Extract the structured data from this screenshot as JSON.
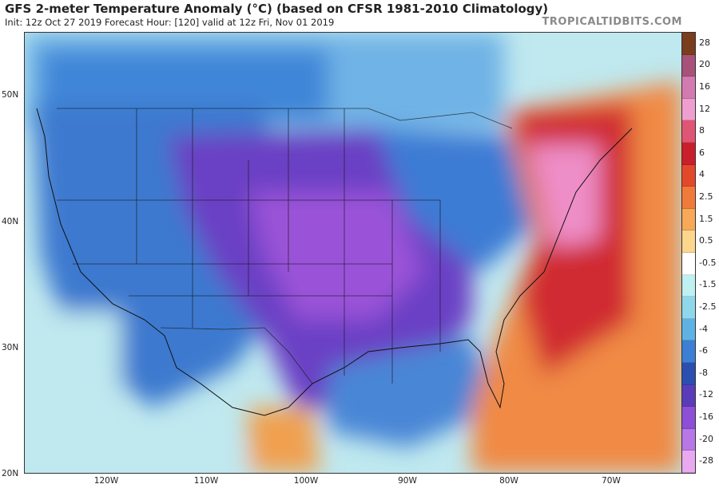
{
  "header": {
    "title": "GFS 2-meter Temperature Anomaly (°C) (based on CFSR 1981-2010 Climatology)",
    "subtitle": "Init: 12z Oct 27 2019   Forecast Hour: [120]   valid at 12z Fri, Nov 01 2019",
    "brand": "TROPICALTIDBITS.COM"
  },
  "map": {
    "lat_labels": [
      "50N",
      "40N",
      "30N",
      "20N"
    ],
    "lon_labels": [
      "120W",
      "110W",
      "100W",
      "90W",
      "80W",
      "70W"
    ]
  },
  "colorbar": {
    "labels": [
      "28",
      "20",
      "16",
      "12",
      "8",
      "6",
      "4",
      "2.5",
      "1.5",
      "0.5",
      "-0.5",
      "-1.5",
      "-2.5",
      "-4",
      "-6",
      "-8",
      "-12",
      "-16",
      "-20",
      "-28"
    ],
    "colors": [
      "#7a3d1e",
      "#a8527a",
      "#d27bb0",
      "#ef9fcf",
      "#e05573",
      "#c91f2c",
      "#e4482a",
      "#f07a3a",
      "#f6a957",
      "#fbd68c",
      "#ffffff",
      "#bff0f2",
      "#8fd8ec",
      "#5fb2e4",
      "#3c7fd4",
      "#2a4fb0",
      "#5a3cba",
      "#8c4fd6",
      "#b777e6",
      "#e8a9f0"
    ],
    "color_names": [
      "brown",
      "mauve",
      "pink",
      "light-pink",
      "rose",
      "red",
      "red-orange",
      "orange",
      "light-orange",
      "pale-yellow",
      "white",
      "pale-cyan",
      "light-blue",
      "blue",
      "medium-blue",
      "dark-blue",
      "indigo",
      "purple",
      "violet",
      "light-violet"
    ]
  }
}
